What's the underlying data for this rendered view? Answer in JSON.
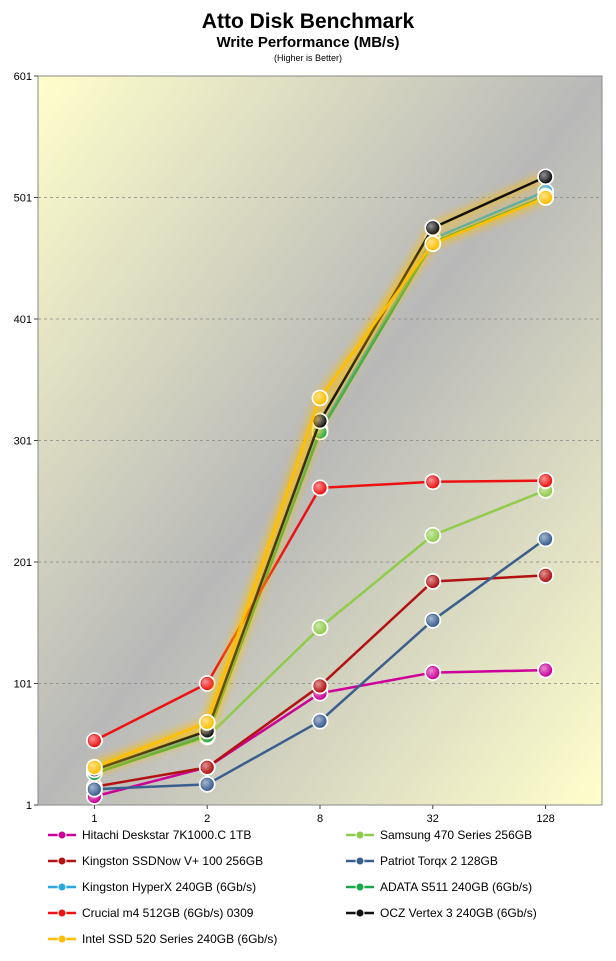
{
  "chart_data": {
    "type": "line",
    "title": "Atto Disk Benchmark",
    "subtitle": "Write Performance (MB/s)",
    "note": "(Higher is Better)",
    "categories": [
      "1",
      "2",
      "8",
      "32",
      "128"
    ],
    "yticks": [
      "1",
      "101",
      "201",
      "301",
      "401",
      "501",
      "601"
    ],
    "ylim": [
      1,
      601
    ],
    "grid": "horizontal dashed",
    "legend_position": "bottom",
    "series": [
      {
        "name": "Hitachi Deskstar 7K1000.C 1TB",
        "color": "#cc0099",
        "values": [
          8,
          32,
          93,
          110,
          112
        ]
      },
      {
        "name": "Samsung 470 Series 256GB",
        "color": "#8fcc4a",
        "values": [
          28,
          57,
          147,
          223,
          260
        ]
      },
      {
        "name": "Kingston SSDNow V+ 100 256GB",
        "color": "#b31212",
        "values": [
          16,
          32,
          99,
          185,
          190
        ]
      },
      {
        "name": "Patriot Torqx 2 128GB",
        "color": "#3a5f8f",
        "values": [
          14,
          18,
          70,
          153,
          220
        ]
      },
      {
        "name": "Kingston HyperX 240GB (6Gb/s)",
        "color": "#29a8e0",
        "values": [
          28,
          60,
          310,
          467,
          506
        ]
      },
      {
        "name": "ADATA S511 240GB (6Gb/s)",
        "color": "#1aa84a",
        "values": [
          27,
          58,
          308,
          464,
          502
        ]
      },
      {
        "name": "Crucial m4 512GB (6Gb/s) 0309",
        "color": "#ee1111",
        "values": [
          54,
          101,
          262,
          267,
          268
        ]
      },
      {
        "name": "OCZ Vertex 3 240GB (6Gb/s)",
        "color": "#111111",
        "values": [
          30,
          62,
          317,
          476,
          518
        ]
      },
      {
        "name": "Intel SSD 520 Series 240GB (6Gb/s)",
        "color": "#ffbf00",
        "values": [
          32,
          69,
          336,
          463,
          501
        ]
      }
    ]
  }
}
